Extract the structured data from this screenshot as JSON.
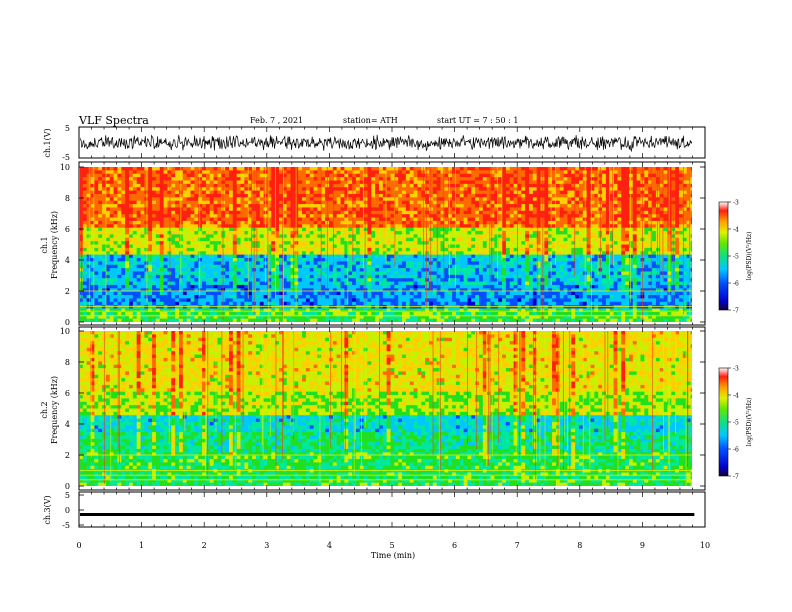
{
  "header": {
    "title": "VLF Spectra",
    "date": "Feb. 7 , 2021",
    "station": "station= ATH",
    "start": "start  UT  =   7 : 50 : 1"
  },
  "chart_data": [
    {
      "type": "line",
      "name": "ch1-waveform",
      "ylabel": "ch.1(V)",
      "ylim": [
        -5,
        5
      ],
      "y_ticks": [
        "5",
        "-5"
      ],
      "xlim": [
        0,
        10
      ],
      "description_note": "dense noisy voltage trace over full time range"
    },
    {
      "type": "heatmap",
      "name": "ch1-spectrogram",
      "ylabel": "ch.1\nFrequency (kHz)",
      "ylim": [
        0,
        10
      ],
      "y_ticks": [
        0,
        2,
        4,
        6,
        8,
        10
      ],
      "xlim": [
        0,
        10
      ],
      "colorbar": {
        "label": "log(PSD)(V²/Hz)",
        "range": [
          -7,
          -3
        ],
        "ticks": [
          "-3",
          "-4",
          "-5",
          "-6",
          "-7"
        ]
      }
    },
    {
      "type": "heatmap",
      "name": "ch2-spectrogram",
      "ylabel": "ch.2\nFrequency (kHz)",
      "ylim": [
        0,
        10
      ],
      "y_ticks": [
        0,
        2,
        4,
        6,
        8,
        10
      ],
      "xlim": [
        0,
        10
      ],
      "colorbar": {
        "label": "log(PSD)(V²/Hz)",
        "range": [
          -7,
          -3
        ],
        "ticks": [
          "-3",
          "-4",
          "-5",
          "-6",
          "-7"
        ]
      }
    },
    {
      "type": "line",
      "name": "ch3-waveform",
      "ylabel": "ch.3(V)",
      "ylim": [
        -5,
        5
      ],
      "y_ticks": [
        "5",
        "0",
        "-5"
      ],
      "xlim": [
        0,
        10
      ],
      "x_ticks": [
        "0",
        "1",
        "2",
        "3",
        "4",
        "5",
        "6",
        "7",
        "8",
        "9",
        "10"
      ],
      "xlabel": "Time  (min)",
      "end_time": 9.83,
      "description_note": "flat thick trace near -1.5 V"
    }
  ],
  "colors": {
    "colormap": [
      "#1a0033",
      "#0000c8",
      "#0050ff",
      "#00c8ff",
      "#00e8a0",
      "#20e020",
      "#c8f000",
      "#ffd000",
      "#ff6a00",
      "#ff2010",
      "#ffffff"
    ]
  }
}
